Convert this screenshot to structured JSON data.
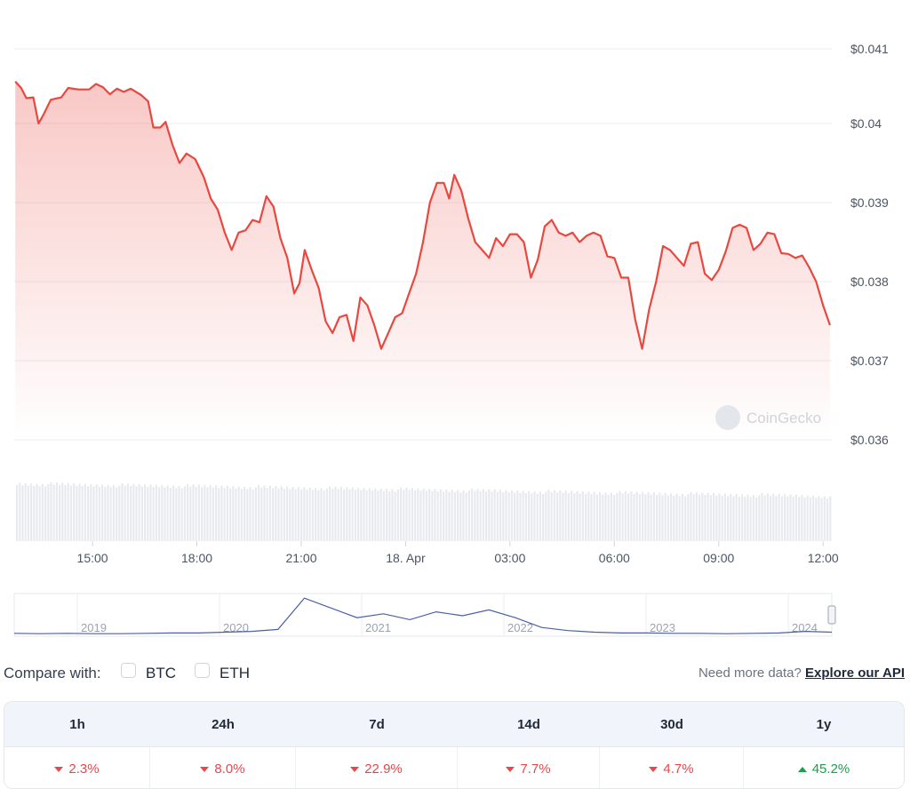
{
  "colors": {
    "price_line": "#e8483f",
    "navigator_line": "#4a5fa8",
    "negative": "#e5484d",
    "positive": "#1aa04a"
  },
  "chart_data": {
    "type": "line",
    "y_ticks": [
      "$0.041",
      "$0.04",
      "$0.039",
      "$0.038",
      "$0.037",
      "$0.036"
    ],
    "y_tick_values": [
      0.041,
      0.04,
      0.039,
      0.038,
      0.037,
      0.036
    ],
    "x_ticks": [
      "15:00",
      "18:00",
      "21:00",
      "18. Apr",
      "03:00",
      "06:00",
      "09:00",
      "12:00"
    ],
    "x_tick_hours": [
      15,
      18,
      21,
      24,
      27,
      30,
      33,
      36
    ],
    "ylim": [
      0.036,
      0.041
    ],
    "x_range_hours": [
      12.75,
      36.25
    ],
    "grid": true,
    "series": [
      {
        "values": [
          [
            12.78,
            0.04053
          ],
          [
            12.95,
            0.04045
          ],
          [
            13.1,
            0.04032
          ],
          [
            13.3,
            0.04033
          ],
          [
            13.45,
            0.04
          ],
          [
            13.6,
            0.04012
          ],
          [
            13.8,
            0.0403
          ],
          [
            14.1,
            0.04033
          ],
          [
            14.3,
            0.04045
          ],
          [
            14.6,
            0.04043
          ],
          [
            14.9,
            0.04043
          ],
          [
            15.1,
            0.0405
          ],
          [
            15.3,
            0.04046
          ],
          [
            15.5,
            0.04037
          ],
          [
            15.7,
            0.04044
          ],
          [
            15.9,
            0.0404
          ],
          [
            16.1,
            0.04044
          ],
          [
            16.4,
            0.04036
          ],
          [
            16.6,
            0.04028
          ],
          [
            16.75,
            0.03995
          ],
          [
            16.95,
            0.03995
          ],
          [
            17.1,
            0.04002
          ],
          [
            17.3,
            0.03973
          ],
          [
            17.5,
            0.0395
          ],
          [
            17.7,
            0.03962
          ],
          [
            17.95,
            0.03955
          ],
          [
            18.2,
            0.03932
          ],
          [
            18.4,
            0.03905
          ],
          [
            18.6,
            0.03891
          ],
          [
            18.8,
            0.03862
          ],
          [
            19.0,
            0.0384
          ],
          [
            19.2,
            0.03862
          ],
          [
            19.4,
            0.03865
          ],
          [
            19.6,
            0.03878
          ],
          [
            19.8,
            0.03875
          ],
          [
            20.0,
            0.03908
          ],
          [
            20.2,
            0.03895
          ],
          [
            20.4,
            0.03855
          ],
          [
            20.6,
            0.0383
          ],
          [
            20.8,
            0.03785
          ],
          [
            20.95,
            0.03798
          ],
          [
            21.1,
            0.0384
          ],
          [
            21.3,
            0.03815
          ],
          [
            21.5,
            0.03792
          ],
          [
            21.7,
            0.0375
          ],
          [
            21.9,
            0.03735
          ],
          [
            22.1,
            0.03755
          ],
          [
            22.3,
            0.03758
          ],
          [
            22.5,
            0.03725
          ],
          [
            22.7,
            0.0378
          ],
          [
            22.9,
            0.0377
          ],
          [
            23.1,
            0.03745
          ],
          [
            23.3,
            0.03715
          ],
          [
            23.5,
            0.03735
          ],
          [
            23.7,
            0.03755
          ],
          [
            23.9,
            0.0376
          ],
          [
            24.1,
            0.03785
          ],
          [
            24.3,
            0.0381
          ],
          [
            24.5,
            0.0385
          ],
          [
            24.7,
            0.039
          ],
          [
            24.9,
            0.03925
          ],
          [
            25.1,
            0.03925
          ],
          [
            25.25,
            0.03905
          ],
          [
            25.4,
            0.03935
          ],
          [
            25.6,
            0.03915
          ],
          [
            25.8,
            0.0388
          ],
          [
            26.0,
            0.0385
          ],
          [
            26.2,
            0.0384
          ],
          [
            26.4,
            0.0383
          ],
          [
            26.6,
            0.03855
          ],
          [
            26.8,
            0.03845
          ],
          [
            27.0,
            0.0386
          ],
          [
            27.2,
            0.0386
          ],
          [
            27.4,
            0.0385
          ],
          [
            27.6,
            0.03805
          ],
          [
            27.8,
            0.03828
          ],
          [
            28.0,
            0.0387
          ],
          [
            28.2,
            0.03878
          ],
          [
            28.4,
            0.03862
          ],
          [
            28.6,
            0.03858
          ],
          [
            28.8,
            0.03862
          ],
          [
            29.0,
            0.0385
          ],
          [
            29.2,
            0.03858
          ],
          [
            29.4,
            0.03862
          ],
          [
            29.6,
            0.03858
          ],
          [
            29.8,
            0.03832
          ],
          [
            30.0,
            0.0383
          ],
          [
            30.2,
            0.03805
          ],
          [
            30.4,
            0.03805
          ],
          [
            30.6,
            0.03752
          ],
          [
            30.8,
            0.03715
          ],
          [
            31.0,
            0.03765
          ],
          [
            31.2,
            0.038
          ],
          [
            31.4,
            0.03845
          ],
          [
            31.6,
            0.0384
          ],
          [
            31.8,
            0.0383
          ],
          [
            32.0,
            0.0382
          ],
          [
            32.2,
            0.03848
          ],
          [
            32.4,
            0.0385
          ],
          [
            32.6,
            0.0381
          ],
          [
            32.8,
            0.03802
          ],
          [
            33.0,
            0.03815
          ],
          [
            33.2,
            0.03838
          ],
          [
            33.4,
            0.03868
          ],
          [
            33.6,
            0.03872
          ],
          [
            33.8,
            0.03868
          ],
          [
            34.0,
            0.0384
          ],
          [
            34.2,
            0.03848
          ],
          [
            34.4,
            0.03862
          ],
          [
            34.6,
            0.0386
          ],
          [
            34.8,
            0.03836
          ],
          [
            35.0,
            0.03835
          ],
          [
            35.2,
            0.0383
          ],
          [
            35.4,
            0.03833
          ],
          [
            35.6,
            0.03818
          ],
          [
            35.8,
            0.038
          ],
          [
            36.0,
            0.0377
          ],
          [
            36.2,
            0.03745
          ]
        ]
      }
    ]
  },
  "watermark": "CoinGecko",
  "navigator": {
    "years": [
      "2019",
      "2020",
      "2021",
      "2022",
      "2023",
      "2024"
    ],
    "values": [
      0.05,
      0.04,
      0.05,
      0.04,
      0.04,
      0.05,
      0.06,
      0.06,
      0.08,
      0.1,
      0.15,
      0.95,
      0.7,
      0.45,
      0.55,
      0.4,
      0.6,
      0.5,
      0.65,
      0.45,
      0.2,
      0.12,
      0.08,
      0.06,
      0.06,
      0.05,
      0.05,
      0.04,
      0.05,
      0.06,
      0.1,
      0.08
    ]
  },
  "compare": {
    "label": "Compare with:",
    "options": [
      "BTC",
      "ETH"
    ]
  },
  "more_data": {
    "text": "Need more data?",
    "link": "Explore our API"
  },
  "performance": {
    "periods": [
      "1h",
      "24h",
      "7d",
      "14d",
      "30d",
      "1y"
    ],
    "changes": [
      "2.3%",
      "8.0%",
      "22.9%",
      "7.7%",
      "4.7%",
      "45.2%"
    ],
    "directions": [
      "down",
      "down",
      "down",
      "down",
      "down",
      "up"
    ]
  }
}
